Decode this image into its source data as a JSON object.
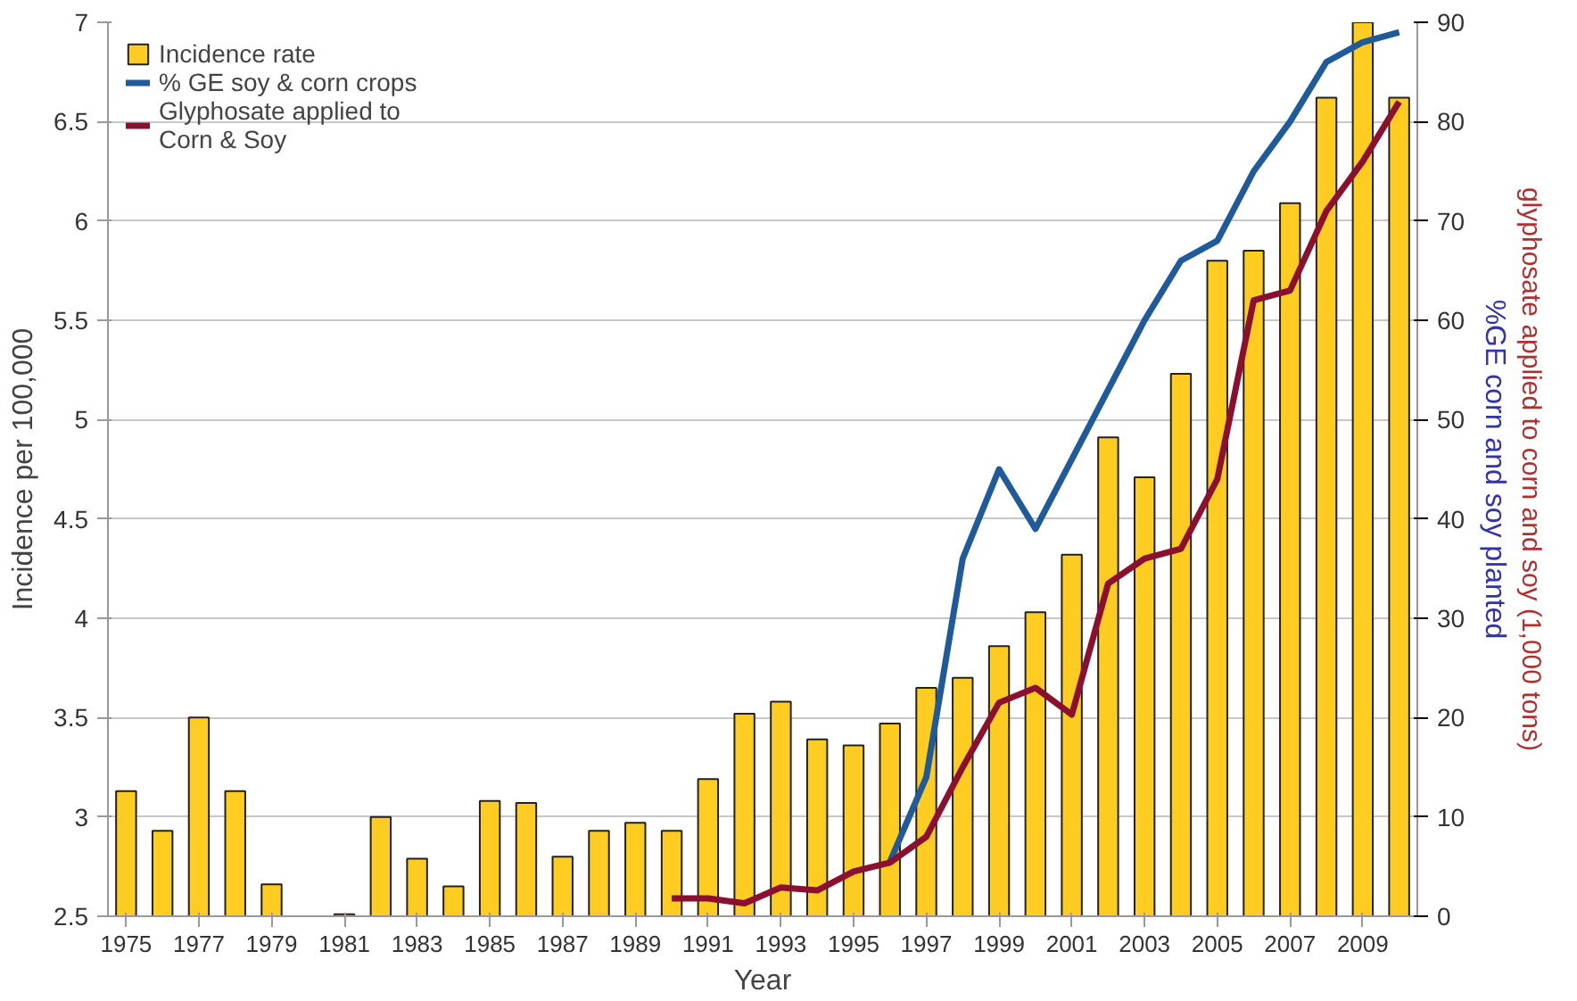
{
  "chart_data": {
    "type": "bar",
    "xlabel": "Year",
    "ylabel": "Incidence per 100,000",
    "y2label": "%GE corn and soy planted",
    "annotations": [
      "glyphosate applied to corn and soy (1,000 tons)"
    ],
    "x": [
      1975,
      1976,
      1977,
      1978,
      1979,
      1980,
      1981,
      1982,
      1983,
      1984,
      1985,
      1986,
      1987,
      1988,
      1989,
      1990,
      1991,
      1992,
      1993,
      1994,
      1995,
      1996,
      1997,
      1998,
      1999,
      2000,
      2001,
      2002,
      2003,
      2004,
      2005,
      2006,
      2007,
      2008,
      2009,
      2010
    ],
    "series": [
      {
        "name": "Incidence rate",
        "color": "#ffcc22",
        "values": [
          3.13,
          2.93,
          3.5,
          3.13,
          2.66,
          null,
          2.51,
          3.0,
          2.79,
          2.65,
          3.08,
          3.07,
          2.8,
          2.93,
          2.97,
          2.93,
          3.19,
          3.52,
          3.58,
          3.39,
          3.36,
          3.47,
          3.65,
          3.7,
          3.86,
          4.03,
          4.32,
          4.91,
          4.71,
          5.23,
          5.8,
          5.85,
          6.09,
          6.62,
          7.0,
          6.62
        ]
      },
      {
        "name": "% GE soy & corn crops",
        "type": "line",
        "axis": "y2",
        "color": "#1f5a9a",
        "x": [
          1996,
          1997,
          1998,
          1999,
          2000,
          2001,
          2002,
          2003,
          2004,
          2005,
          2006,
          2007,
          2008,
          2009,
          2010
        ],
        "values": [
          5.5,
          14,
          36,
          45,
          39,
          46,
          53,
          60,
          66,
          68,
          75,
          80,
          86,
          88,
          89
        ]
      },
      {
        "name": "Glyphosate applied to Corn & Soy",
        "type": "line",
        "axis": "y2",
        "color": "#8b1030",
        "x": [
          1990,
          1991,
          1992,
          1993,
          1994,
          1995,
          1996,
          1997,
          1998,
          1999,
          2000,
          2001,
          2002,
          2003,
          2004,
          2005,
          2006,
          2007,
          2008,
          2009,
          2010
        ],
        "values": [
          1.8,
          1.8,
          1.3,
          2.9,
          2.6,
          4.5,
          5.4,
          8,
          15,
          21.5,
          23,
          20.3,
          33.5,
          36,
          37,
          44,
          62,
          63,
          71,
          76,
          82
        ]
      }
    ],
    "xlim": [
      1974.5,
      2010.5
    ],
    "xticks": [
      1975,
      1977,
      1979,
      1981,
      1983,
      1985,
      1987,
      1989,
      1991,
      1993,
      1995,
      1997,
      1999,
      2001,
      2003,
      2005,
      2007,
      2009
    ],
    "ylim": [
      2.5,
      7
    ],
    "yticks": [
      2.5,
      3,
      3.5,
      4,
      4.5,
      5,
      5.5,
      6,
      6.5,
      7
    ],
    "y2lim": [
      0,
      90
    ],
    "y2ticks": [
      0,
      10,
      20,
      30,
      40,
      50,
      60,
      70,
      80,
      90
    ],
    "grid": "y",
    "legend": "top left"
  }
}
